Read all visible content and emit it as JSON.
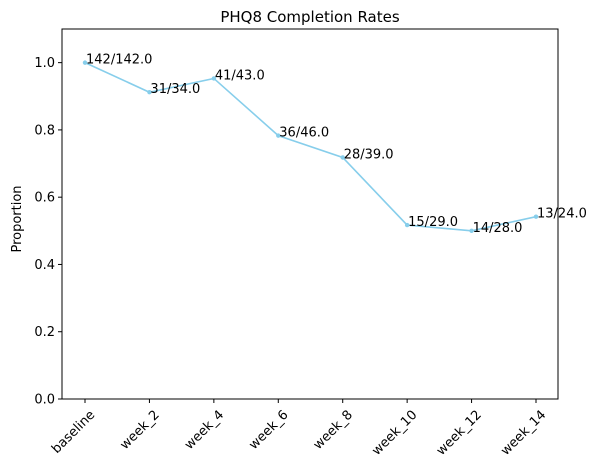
{
  "chart_data": {
    "type": "line",
    "title": "PHQ8 Completion Rates",
    "xlabel": "",
    "ylabel": "Proportion",
    "ylim": [
      0,
      1.1
    ],
    "yticks": [
      0.0,
      0.2,
      0.4,
      0.6,
      0.8,
      1.0
    ],
    "ytick_labels": [
      "0.0",
      "0.2",
      "0.4",
      "0.6",
      "0.8",
      "1.0"
    ],
    "categories": [
      "baseline",
      "week_2",
      "week_4",
      "week_6",
      "week_8",
      "week_10",
      "week_12",
      "week_14"
    ],
    "values": [
      1.0,
      0.912,
      0.953,
      0.783,
      0.718,
      0.517,
      0.5,
      0.542
    ],
    "data_labels": [
      "142/142.0",
      "31/34.0",
      "41/43.0",
      "36/46.0",
      "28/39.0",
      "15/29.0",
      "14/28.0",
      "13/24.0"
    ],
    "grid": false,
    "color": "#87ceeb"
  }
}
